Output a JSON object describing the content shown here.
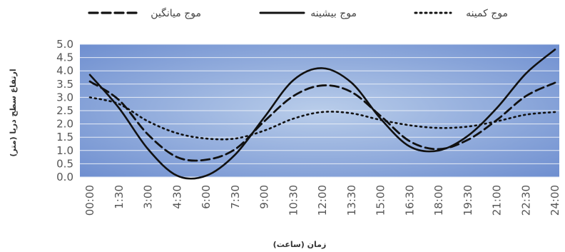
{
  "chart_data": {
    "type": "line",
    "title": "",
    "xlabel": "زمان (ساعت)",
    "ylabel": "ارتفاع سطح دریا (متر)",
    "ylim": [
      0,
      5
    ],
    "y_ticks": [
      "0.0",
      "0.5",
      "1.0",
      "1.5",
      "2.0",
      "2.5",
      "3.0",
      "3.5",
      "4.0",
      "4.5",
      "5.0"
    ],
    "categories": [
      "00:00",
      "01:30",
      "03:00",
      "04:30",
      "06:00",
      "07:30",
      "09:00",
      "10:30",
      "12:00",
      "13:30",
      "15:00",
      "16:30",
      "18:00",
      "19:30",
      "21:00",
      "22:30",
      "24:00"
    ],
    "x_tick_labels": [
      "00:00",
      "1:30",
      "3:00",
      "4:30",
      "6:00",
      "7:30",
      "9:00",
      "10:30",
      "12:00",
      "13:30",
      "15:00",
      "16:30",
      "18:00",
      "19:30",
      "21:00",
      "22:30",
      "24:00"
    ],
    "grid": true,
    "legend_position": "top",
    "series": [
      {
        "name": "موج میانگین",
        "style": "dashed",
        "color": "#111111",
        "values": [
          3.6,
          2.9,
          1.6,
          0.75,
          0.65,
          1.05,
          2.1,
          3.05,
          3.45,
          3.2,
          2.3,
          1.35,
          1.05,
          1.4,
          2.15,
          3.05,
          3.55
        ]
      },
      {
        "name": "موج بیشینه",
        "style": "solid",
        "color": "#111111",
        "values": [
          3.85,
          2.6,
          1.05,
          0.05,
          0.05,
          0.85,
          2.25,
          3.65,
          4.1,
          3.55,
          2.2,
          1.15,
          1.0,
          1.55,
          2.6,
          3.9,
          4.8
        ]
      },
      {
        "name": "موج کمینه",
        "style": "dotted",
        "color": "#111111",
        "values": [
          3.0,
          2.75,
          2.1,
          1.65,
          1.45,
          1.45,
          1.75,
          2.2,
          2.45,
          2.4,
          2.15,
          1.95,
          1.85,
          1.9,
          2.1,
          2.35,
          2.45
        ]
      }
    ]
  }
}
